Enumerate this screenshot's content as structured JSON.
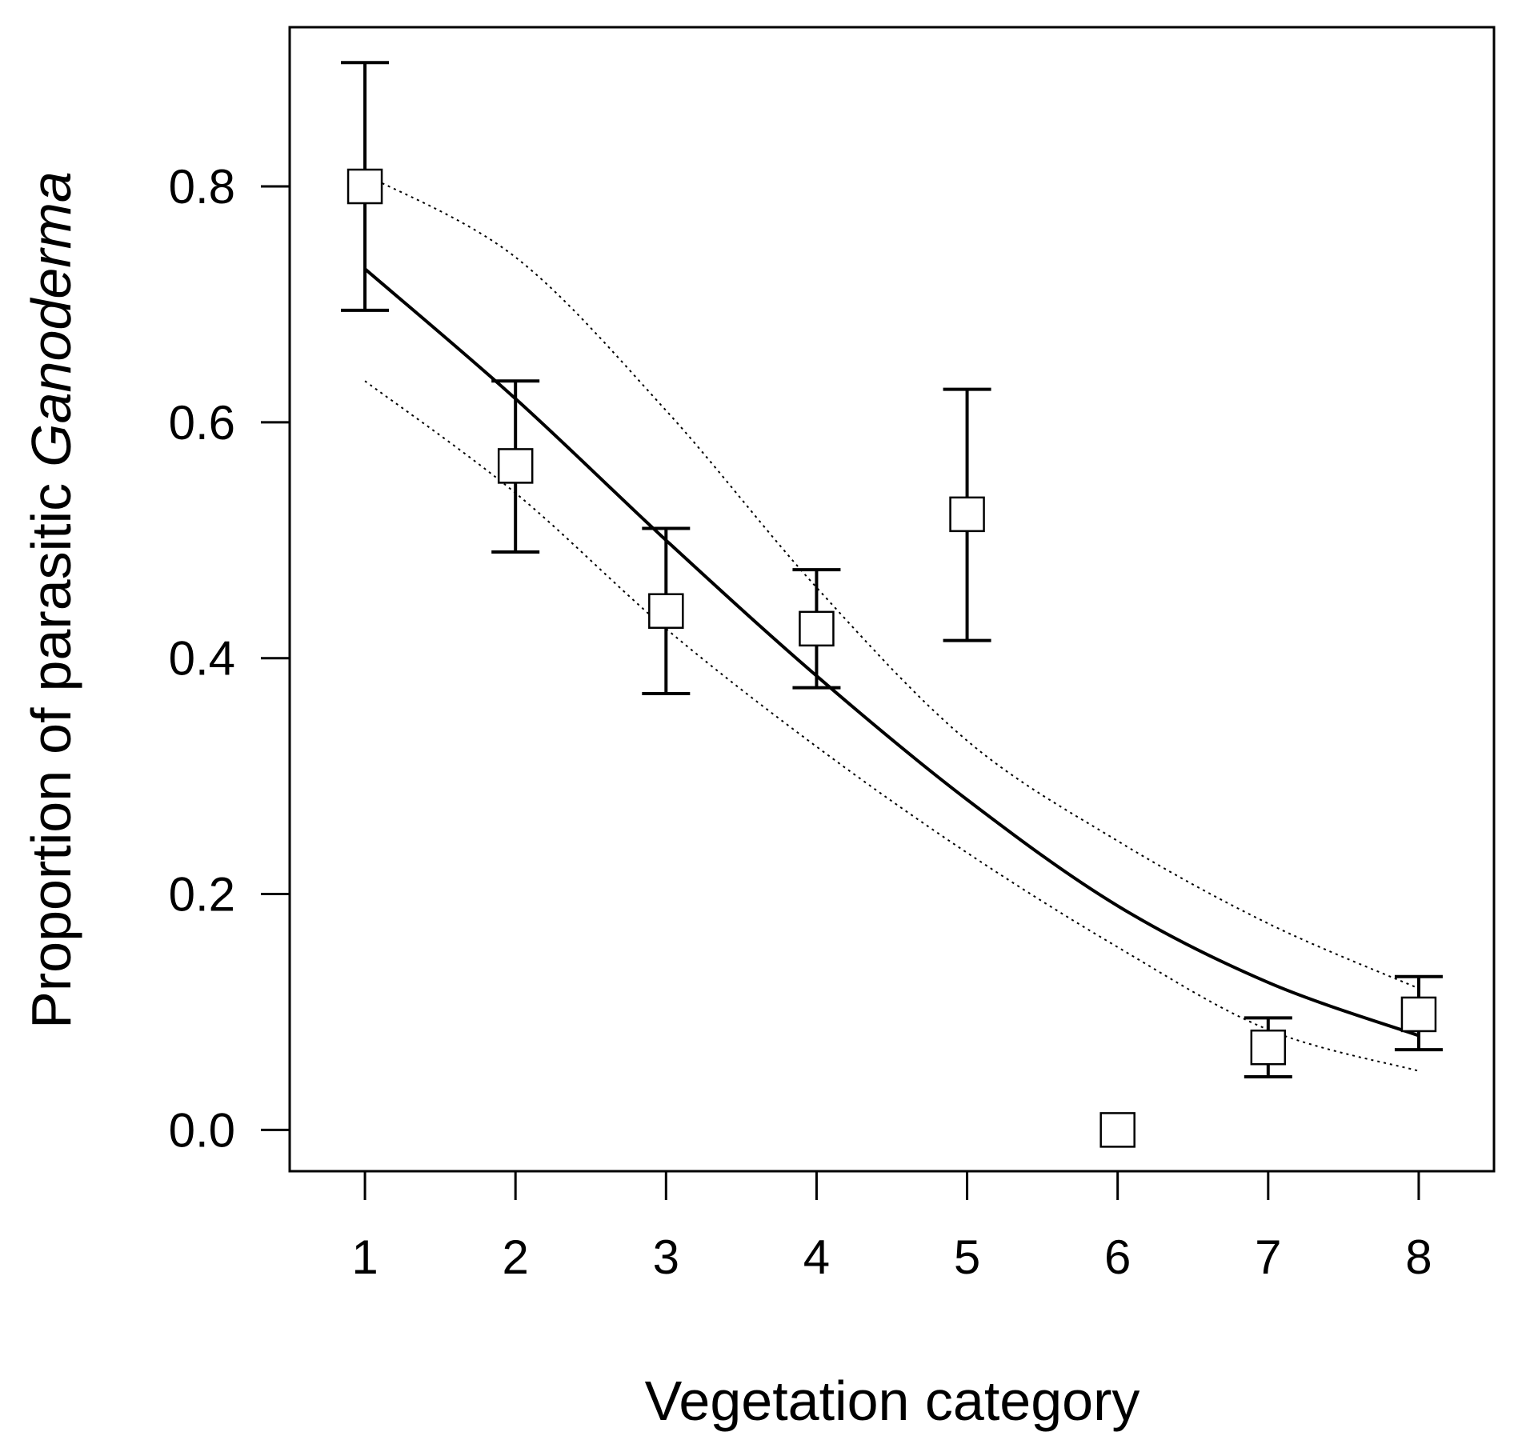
{
  "chart_data": {
    "type": "scatter",
    "title": "",
    "xlabel": "Vegetation category",
    "ylabel_parts": [
      "Proportion",
      "of",
      "parasitic",
      "Ganoderma"
    ],
    "x": [
      1,
      2,
      3,
      4,
      5,
      6,
      7,
      8
    ],
    "xlim": [
      0.5,
      8.5
    ],
    "ylim": [
      -0.035,
      0.935
    ],
    "x_ticks": [
      1,
      2,
      3,
      4,
      5,
      6,
      7,
      8
    ],
    "x_tick_labels": [
      "1",
      "2",
      "3",
      "4",
      "5",
      "6",
      "7",
      "8"
    ],
    "y_ticks": [
      0.0,
      0.2,
      0.4,
      0.6,
      0.8
    ],
    "y_tick_labels": [
      "0.0",
      "0.2",
      "0.4",
      "0.6",
      "0.8"
    ],
    "series": [
      {
        "name": "observed proportion",
        "marker": "open-square",
        "x": [
          1,
          2,
          3,
          4,
          5,
          6,
          7,
          8
        ],
        "y": [
          0.8,
          0.563,
          0.44,
          0.425,
          0.522,
          0.0,
          0.07,
          0.098
        ],
        "error_low": [
          0.695,
          0.49,
          0.37,
          0.375,
          0.415,
          null,
          0.045,
          0.068
        ],
        "error_high": [
          0.905,
          0.635,
          0.51,
          0.475,
          0.628,
          null,
          0.095,
          0.13
        ]
      },
      {
        "name": "fitted curve",
        "style": "solid",
        "x": [
          1,
          2,
          3,
          4,
          5,
          6,
          7,
          8
        ],
        "y": [
          0.73,
          0.62,
          0.5,
          0.385,
          0.28,
          0.19,
          0.125,
          0.08
        ]
      },
      {
        "name": "upper confidence bound",
        "style": "dotted",
        "x": [
          1,
          2,
          3,
          4,
          5,
          6,
          7,
          8
        ],
        "y": [
          0.81,
          0.74,
          0.61,
          0.46,
          0.33,
          0.245,
          0.175,
          0.12
        ]
      },
      {
        "name": "lower confidence bound",
        "style": "dotted",
        "x": [
          1,
          2,
          3,
          4,
          5,
          6,
          7,
          8
        ],
        "y": [
          0.635,
          0.54,
          0.425,
          0.325,
          0.235,
          0.155,
          0.085,
          0.05
        ]
      }
    ],
    "grid": false,
    "legend": "none"
  }
}
